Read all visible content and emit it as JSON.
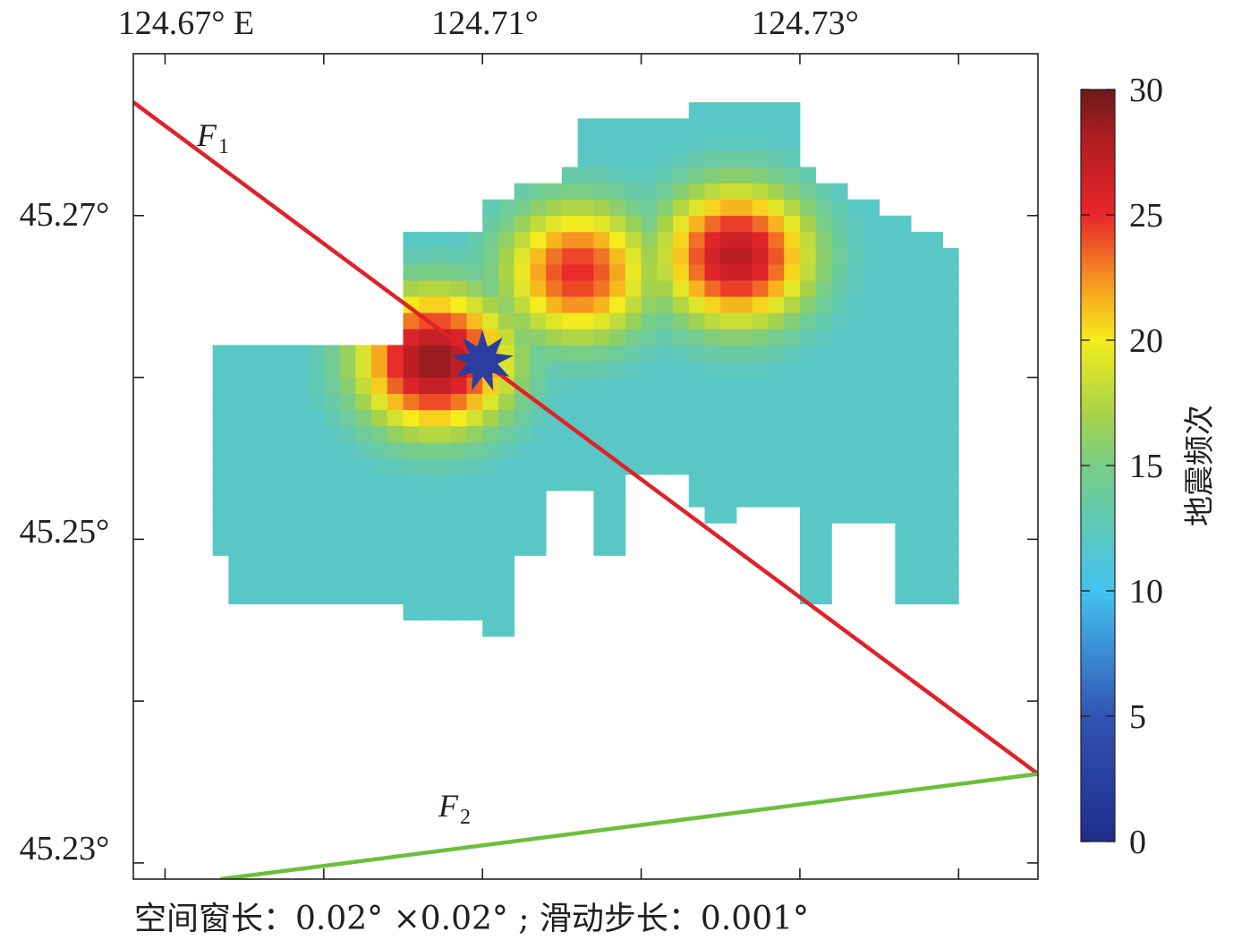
{
  "chart_data": {
    "type": "heatmap",
    "title": "",
    "x_ticks": [
      {
        "value": 124.67,
        "label": "124.67° E"
      },
      {
        "value": 124.71,
        "label": "124.71°"
      },
      {
        "value": 124.73,
        "label": "124.73°"
      }
    ],
    "y_ticks": [
      {
        "value": 45.27,
        "label": "45.27°"
      },
      {
        "value": 45.25,
        "label": "45.25°"
      },
      {
        "value": 45.23,
        "label": "45.23°"
      }
    ],
    "xlim": [
      124.688,
      124.745
    ],
    "ylim": [
      45.229,
      45.28
    ],
    "colorbar": {
      "label": "地震频次",
      "range": [
        0,
        30
      ],
      "ticks": [
        0,
        5,
        10,
        15,
        20,
        25,
        30
      ]
    },
    "grid_step": 0.001,
    "hotspots": [
      {
        "lon": 124.707,
        "lat": 45.261,
        "peak": 29
      },
      {
        "lon": 124.716,
        "lat": 45.2665,
        "peak": 25
      },
      {
        "lon": 124.726,
        "lat": 45.2675,
        "peak": 27.5
      }
    ],
    "faults": [
      {
        "name": "F",
        "subscript": "1",
        "color": "#e02228",
        "points": [
          [
            124.688,
            45.277
          ],
          [
            124.745,
            45.2355
          ]
        ]
      },
      {
        "name": "F",
        "subscript": "2",
        "color": "#6bbf3b",
        "points": [
          [
            124.6935,
            45.229
          ],
          [
            124.745,
            45.2355
          ]
        ]
      }
    ],
    "epicenter": {
      "lon": 124.71,
      "lat": 45.261,
      "symbol": "star",
      "color": "#2b3ea0"
    },
    "annotation": "空间窗长：0.02° ×0.02° ; 滑动步长：0.001°"
  }
}
